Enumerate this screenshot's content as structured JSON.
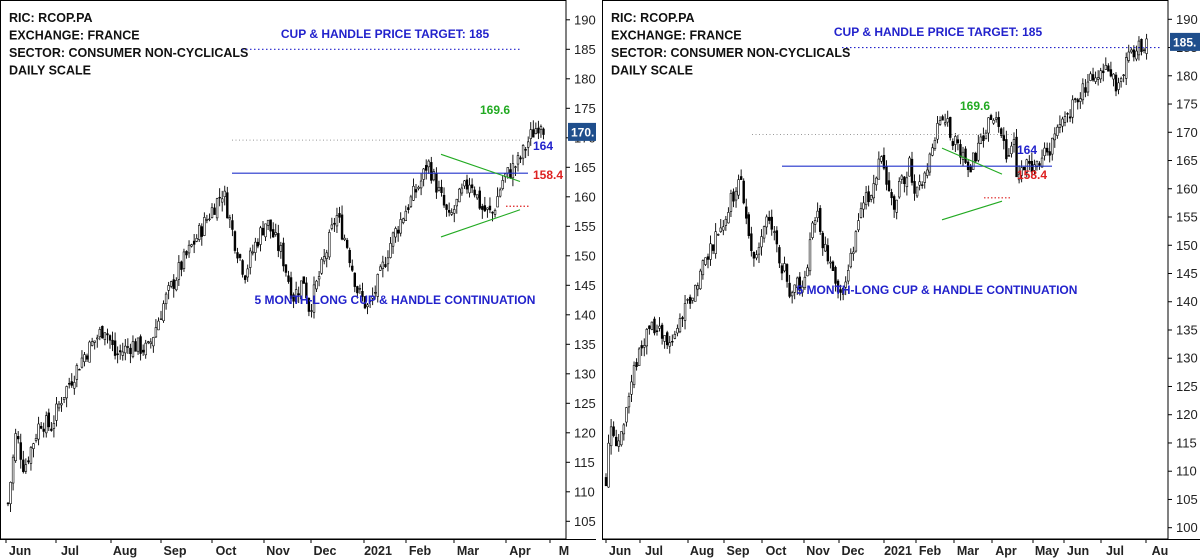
{
  "chart_data": [
    {
      "type": "candlestick",
      "info_lines": [
        "RIC: RCOP.PA",
        "EXCHANGE: FRANCE",
        "SECTOR: CONSUMER NON-CYCLICALS",
        "DAILY SCALE"
      ],
      "target_label": "CUP & HANDLE PRICE TARGET: 185",
      "pattern_label": "5 MONTH-LONG CUP & HANDLE CONTINUATION",
      "x_labels": [
        "Jun",
        "Jul",
        "Aug",
        "Sep",
        "Oct",
        "Nov",
        "Dec",
        "2021",
        "Feb",
        "Mar",
        "Apr",
        "M"
      ],
      "y_ticks": [
        105,
        110,
        115,
        120,
        125,
        130,
        135,
        140,
        145,
        150,
        155,
        160,
        165,
        170,
        175,
        180,
        185,
        190
      ],
      "ylim": [
        102,
        192
      ],
      "last_price_badge": "170.",
      "levels": {
        "target": 185,
        "upper": 169.6,
        "neckline": 164,
        "support": 158.4
      },
      "level_labels": {
        "upper": "169.6",
        "neckline": "164",
        "support": "158.4"
      },
      "wedge": {
        "upper_from": 167.2,
        "upper_to": 162.6,
        "lower_from": 153.2,
        "lower_to": 157.8
      },
      "close_path": [
        {
          "t": 0.0,
          "v": 108
        },
        {
          "t": 0.015,
          "v": 120
        },
        {
          "t": 0.03,
          "v": 114
        },
        {
          "t": 0.06,
          "v": 122
        },
        {
          "t": 0.08,
          "v": 121
        },
        {
          "t": 0.1,
          "v": 126
        },
        {
          "t": 0.14,
          "v": 133
        },
        {
          "t": 0.18,
          "v": 138
        },
        {
          "t": 0.2,
          "v": 133
        },
        {
          "t": 0.23,
          "v": 135
        },
        {
          "t": 0.26,
          "v": 134
        },
        {
          "t": 0.29,
          "v": 142
        },
        {
          "t": 0.32,
          "v": 148
        },
        {
          "t": 0.35,
          "v": 153
        },
        {
          "t": 0.38,
          "v": 158
        },
        {
          "t": 0.4,
          "v": 161
        },
        {
          "t": 0.42,
          "v": 153
        },
        {
          "t": 0.44,
          "v": 147
        },
        {
          "t": 0.46,
          "v": 152
        },
        {
          "t": 0.48,
          "v": 156
        },
        {
          "t": 0.51,
          "v": 150
        },
        {
          "t": 0.53,
          "v": 143
        },
        {
          "t": 0.55,
          "v": 146
        },
        {
          "t": 0.56,
          "v": 141
        },
        {
          "t": 0.59,
          "v": 150
        },
        {
          "t": 0.61,
          "v": 157
        },
        {
          "t": 0.63,
          "v": 152
        },
        {
          "t": 0.65,
          "v": 144
        },
        {
          "t": 0.67,
          "v": 141
        },
        {
          "t": 0.69,
          "v": 146
        },
        {
          "t": 0.71,
          "v": 152
        },
        {
          "t": 0.74,
          "v": 158
        },
        {
          "t": 0.77,
          "v": 163
        },
        {
          "t": 0.78,
          "v": 166
        },
        {
          "t": 0.8,
          "v": 161
        },
        {
          "t": 0.82,
          "v": 156
        },
        {
          "t": 0.84,
          "v": 160
        },
        {
          "t": 0.86,
          "v": 163
        },
        {
          "t": 0.88,
          "v": 158
        },
        {
          "t": 0.9,
          "v": 157
        },
        {
          "t": 0.92,
          "v": 163
        },
        {
          "t": 0.95,
          "v": 166
        },
        {
          "t": 0.97,
          "v": 170
        },
        {
          "t": 0.99,
          "v": 173
        },
        {
          "t": 1.0,
          "v": 171
        }
      ]
    },
    {
      "type": "candlestick",
      "info_lines": [
        "RIC: RCOP.PA",
        "EXCHANGE: FRANCE",
        "SECTOR: CONSUMER NON-CYCLICALS",
        "DAILY SCALE"
      ],
      "target_label": "CUP & HANDLE PRICE TARGET: 185",
      "pattern_label": "5 MONTH-LONG CUP & HANDLE CONTINUATION",
      "x_labels": [
        "Jun",
        "Jul",
        "Aug",
        "Sep",
        "Oct",
        "Nov",
        "Dec",
        "2021",
        "Feb",
        "Mar",
        "Apr",
        "May",
        "Jun",
        "Jul",
        "Au"
      ],
      "y_ticks": [
        100,
        105,
        110,
        115,
        120,
        125,
        130,
        135,
        140,
        145,
        150,
        155,
        160,
        165,
        170,
        175,
        180,
        185,
        190
      ],
      "ylim": [
        98,
        192
      ],
      "last_price_badge": "185.",
      "levels": {
        "target": 185,
        "upper": 169.6,
        "neckline": 164,
        "support": 158.4
      },
      "level_labels": {
        "upper": "169.6",
        "neckline": "164",
        "support": "158.4"
      },
      "wedge": {
        "upper_from": 167.2,
        "upper_to": 162.6,
        "lower_from": 154.5,
        "lower_to": 157.8
      },
      "close_path": [
        {
          "t": 0.0,
          "v": 109
        },
        {
          "t": 0.01,
          "v": 120
        },
        {
          "t": 0.02,
          "v": 114
        },
        {
          "t": 0.04,
          "v": 122
        },
        {
          "t": 0.06,
          "v": 131
        },
        {
          "t": 0.08,
          "v": 136
        },
        {
          "t": 0.1,
          "v": 134
        },
        {
          "t": 0.12,
          "v": 132
        },
        {
          "t": 0.14,
          "v": 137
        },
        {
          "t": 0.16,
          "v": 141
        },
        {
          "t": 0.18,
          "v": 147
        },
        {
          "t": 0.2,
          "v": 151
        },
        {
          "t": 0.22,
          "v": 155
        },
        {
          "t": 0.24,
          "v": 160
        },
        {
          "t": 0.25,
          "v": 161
        },
        {
          "t": 0.26,
          "v": 154
        },
        {
          "t": 0.27,
          "v": 147
        },
        {
          "t": 0.29,
          "v": 152
        },
        {
          "t": 0.3,
          "v": 155
        },
        {
          "t": 0.32,
          "v": 148
        },
        {
          "t": 0.34,
          "v": 142
        },
        {
          "t": 0.35,
          "v": 145
        },
        {
          "t": 0.36,
          "v": 141
        },
        {
          "t": 0.38,
          "v": 152
        },
        {
          "t": 0.39,
          "v": 157
        },
        {
          "t": 0.4,
          "v": 151
        },
        {
          "t": 0.42,
          "v": 144
        },
        {
          "t": 0.43,
          "v": 142
        },
        {
          "t": 0.45,
          "v": 146
        },
        {
          "t": 0.46,
          "v": 152
        },
        {
          "t": 0.48,
          "v": 158
        },
        {
          "t": 0.5,
          "v": 163
        },
        {
          "t": 0.51,
          "v": 166
        },
        {
          "t": 0.52,
          "v": 161
        },
        {
          "t": 0.53,
          "v": 157
        },
        {
          "t": 0.55,
          "v": 162
        },
        {
          "t": 0.56,
          "v": 164
        },
        {
          "t": 0.57,
          "v": 158
        },
        {
          "t": 0.58,
          "v": 160
        },
        {
          "t": 0.6,
          "v": 166
        },
        {
          "t": 0.61,
          "v": 171
        },
        {
          "t": 0.62,
          "v": 173
        },
        {
          "t": 0.64,
          "v": 169
        },
        {
          "t": 0.66,
          "v": 166
        },
        {
          "t": 0.67,
          "v": 164
        },
        {
          "t": 0.69,
          "v": 168
        },
        {
          "t": 0.71,
          "v": 172
        },
        {
          "t": 0.73,
          "v": 170
        },
        {
          "t": 0.745,
          "v": 164
        },
        {
          "t": 0.75,
          "v": 171
        },
        {
          "t": 0.76,
          "v": 161
        },
        {
          "t": 0.77,
          "v": 163
        },
        {
          "t": 0.79,
          "v": 165
        },
        {
          "t": 0.81,
          "v": 166
        },
        {
          "t": 0.83,
          "v": 169
        },
        {
          "t": 0.85,
          "v": 173
        },
        {
          "t": 0.87,
          "v": 176
        },
        {
          "t": 0.89,
          "v": 179
        },
        {
          "t": 0.91,
          "v": 181
        },
        {
          "t": 0.93,
          "v": 182
        },
        {
          "t": 0.94,
          "v": 178
        },
        {
          "t": 0.96,
          "v": 182
        },
        {
          "t": 0.98,
          "v": 185
        },
        {
          "t": 1.0,
          "v": 186
        }
      ]
    }
  ]
}
